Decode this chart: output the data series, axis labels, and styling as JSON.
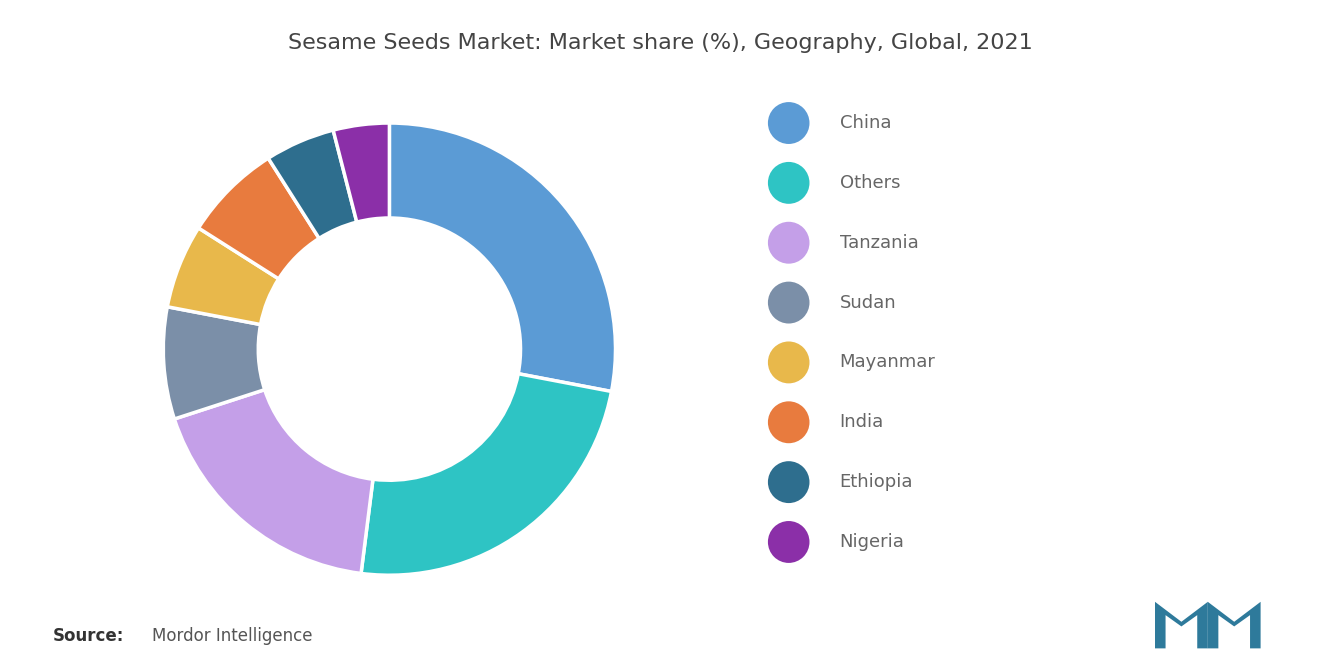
{
  "title": "Sesame Seeds Market: Market share (%), Geography, Global, 2021",
  "labels": [
    "China",
    "Others",
    "Tanzania",
    "Sudan",
    "Mayanmar",
    "India",
    "Ethiopia",
    "Nigeria"
  ],
  "values": [
    28,
    24,
    18,
    8,
    6,
    7,
    5,
    4
  ],
  "colors": [
    "#5B9BD5",
    "#2EC4C4",
    "#C49FE8",
    "#7B8FA8",
    "#E8B84B",
    "#E87B3E",
    "#2E6E8E",
    "#8B2FA8"
  ],
  "source_bold": "Source:",
  "source_text": "Mordor Intelligence",
  "background_color": "#FFFFFF",
  "title_fontsize": 16,
  "legend_fontsize": 13,
  "source_fontsize": 12
}
